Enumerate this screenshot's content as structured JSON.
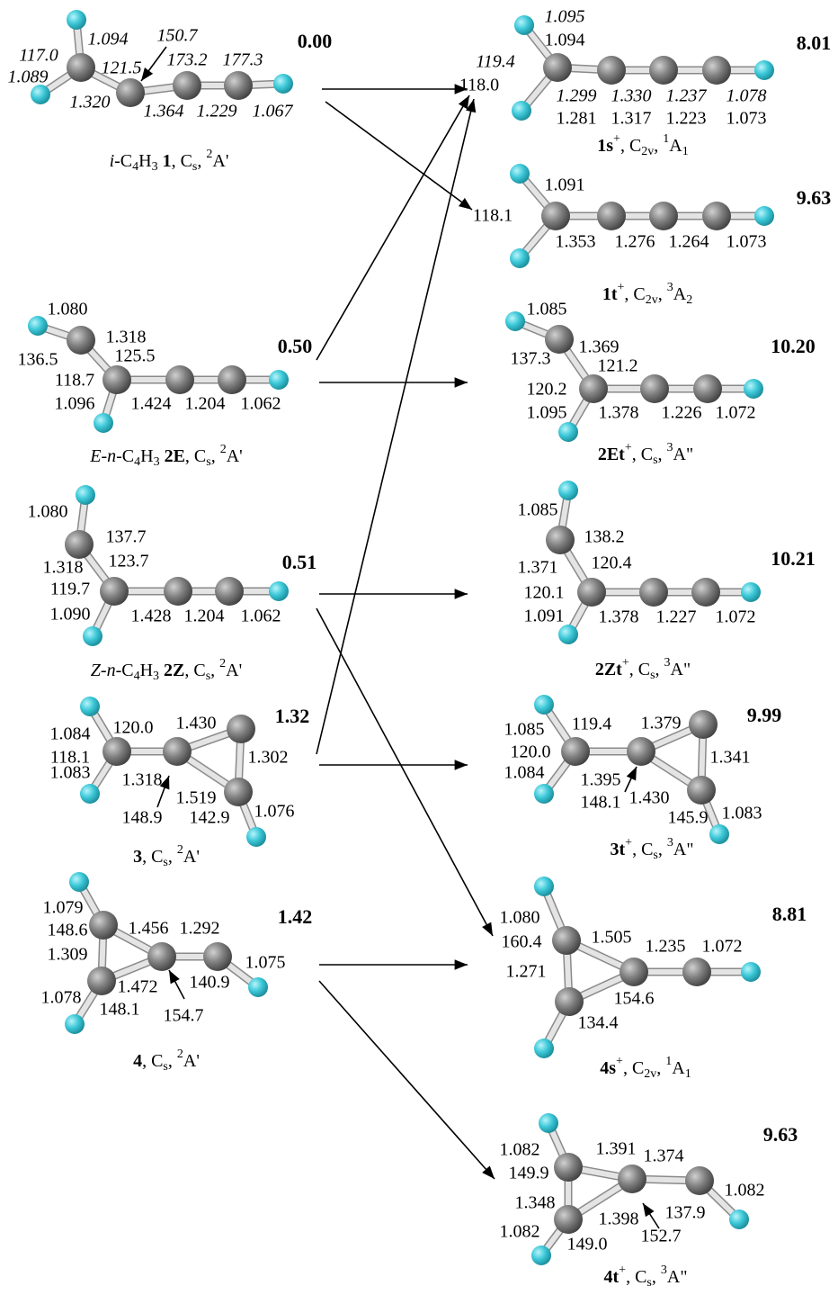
{
  "molecules": [
    {
      "energy": "0.00",
      "caption": [
        "i",
        "-C",
        "4",
        "H",
        "3",
        " 1",
        ", C",
        "s",
        ", ",
        "2",
        "A'"
      ],
      "labels": [
        "117.0",
        "1.094",
        "150.7",
        "121.5",
        "173.2",
        "177.3",
        "1.089",
        "1.320",
        "1.364",
        "1.229",
        "1.067"
      ]
    },
    {
      "energy": "8.01",
      "caption": [
        "1s",
        "+",
        ", C",
        "2v",
        ", ",
        "1",
        "A",
        "1"
      ],
      "labels": [
        "1.095",
        "119.4",
        "1.299",
        "1.330",
        "1.237",
        "1.078",
        "1.094",
        "118.0",
        "1.281",
        "1.317",
        "1.223",
        "1.073"
      ]
    },
    {
      "energy": "9.63",
      "caption": [
        "1t",
        "+",
        ", C",
        "2v",
        ", ",
        "3",
        "A",
        "2"
      ],
      "labels": [
        "1.091",
        "118.1",
        "1.353",
        "1.276",
        "1.264",
        "1.073"
      ]
    },
    {
      "energy": "0.50",
      "caption": [
        "E",
        "-",
        "n",
        "-C",
        "4",
        "H",
        "3",
        " 2E",
        ", C",
        "s",
        ", ",
        "2",
        "A'"
      ],
      "labels": [
        "1.080",
        "1.318",
        "125.5",
        "136.5",
        "118.7",
        "1.096",
        "1.424",
        "1.204",
        "1.062"
      ]
    },
    {
      "energy": "10.20",
      "caption": [
        "2Et",
        "+",
        ", C",
        "s",
        ", ",
        "3",
        "A\""
      ],
      "labels": [
        "1.085",
        "1.369",
        "137.3",
        "121.2",
        "120.2",
        "1.095",
        "1.378",
        "1.226",
        "1.072"
      ]
    },
    {
      "energy": "0.51",
      "caption": [
        "Z",
        "-",
        "n",
        "-C",
        "4",
        "H",
        "3",
        " 2Z",
        ", C",
        "s",
        ", ",
        "2",
        "A'"
      ],
      "labels": [
        "1.080",
        "137.7",
        "1.318",
        "123.7",
        "119.7",
        "1.090",
        "1.428",
        "1.204",
        "1.062"
      ]
    },
    {
      "energy": "10.21",
      "caption": [
        "2Zt",
        "+",
        ", C",
        "s",
        ", ",
        "3",
        "A\""
      ],
      "labels": [
        "1.085",
        "138.2",
        "1.371",
        "120.4",
        "120.1",
        "1.091",
        "1.378",
        "1.227",
        "1.072"
      ]
    },
    {
      "energy": "1.32",
      "caption": [
        "3",
        ", C",
        "s",
        ", ",
        "2",
        "A'"
      ],
      "labels": [
        "1.084",
        "120.0",
        "1.430",
        "118.1",
        "1.302",
        "1.083",
        "1.318",
        "1.519",
        "148.9",
        "142.9",
        "1.076"
      ]
    },
    {
      "energy": "9.99",
      "caption": [
        "3t",
        "+",
        ", C",
        "s",
        ", ",
        "3",
        "A\""
      ],
      "labels": [
        "1.085",
        "119.4",
        "1.379",
        "120.0",
        "1.341",
        "1.084",
        "1.395",
        "148.1",
        "1.430",
        "145.9",
        "1.083"
      ]
    },
    {
      "energy": "1.42",
      "caption": [
        "4",
        ", C",
        "s",
        ", ",
        "2",
        "A'"
      ],
      "labels": [
        "1.079",
        "148.6",
        "1.456",
        "1.292",
        "1.309",
        "1.075",
        "1.078",
        "1.472",
        "140.9",
        "148.1",
        "154.7"
      ]
    },
    {
      "energy": "8.81",
      "caption": [
        "4s",
        "+",
        ", C",
        "2v",
        ", ",
        "1",
        "A",
        "1"
      ],
      "labels": [
        "1.080",
        "1.505",
        "1.235",
        "1.072",
        "160.4",
        "1.271",
        "154.6",
        "134.4"
      ]
    },
    {
      "energy": "9.63",
      "caption": [
        "4t",
        "+",
        ", C",
        "s",
        ", ",
        "3",
        "A\""
      ],
      "labels": [
        "1.082",
        "149.9",
        "1.391",
        "1.374",
        "1.348",
        "1.082",
        "1.398",
        "137.9",
        "1.082",
        "149.0",
        "152.7"
      ]
    }
  ]
}
